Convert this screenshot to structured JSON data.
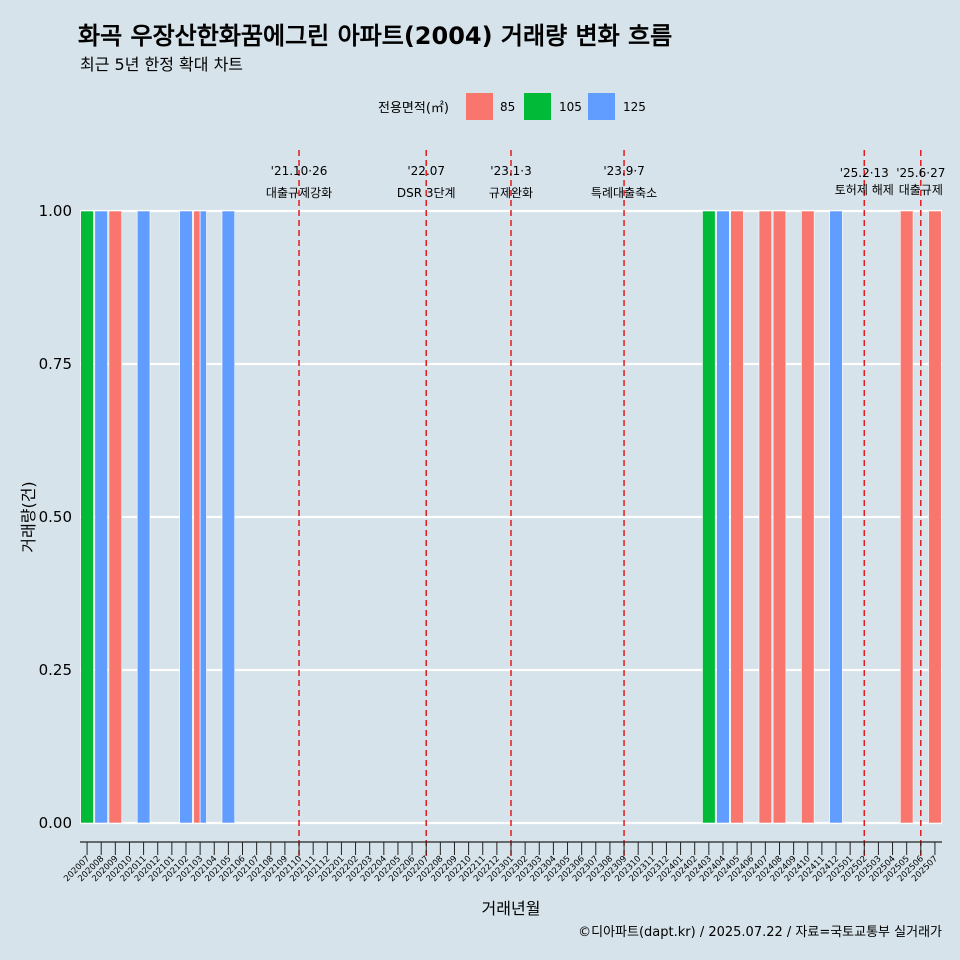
{
  "chart_data": {
    "type": "bar",
    "title": "화곡 우장산한화꿈에그린 아파트(2004) 거래량 변화 흐름",
    "subtitle": "최근 5년 한정 확대 차트",
    "xlabel": "거래년월",
    "ylabel": "거래량(건)",
    "ylim": [
      0,
      1
    ],
    "yticks": [
      "0.00",
      "0.25",
      "0.50",
      "0.75",
      "1.00"
    ],
    "legend_title": "전용면적(㎡)",
    "legend_position": "top",
    "categories": [
      "202007",
      "202008",
      "202009",
      "202010",
      "202011",
      "202012",
      "202101",
      "202102",
      "202103",
      "202104",
      "202105",
      "202106",
      "202107",
      "202108",
      "202109",
      "202110",
      "202111",
      "202112",
      "202201",
      "202202",
      "202203",
      "202204",
      "202205",
      "202206",
      "202207",
      "202208",
      "202209",
      "202210",
      "202211",
      "202212",
      "202301",
      "202302",
      "202303",
      "202304",
      "202305",
      "202306",
      "202307",
      "202308",
      "202309",
      "202310",
      "202311",
      "202312",
      "202401",
      "202402",
      "202403",
      "202404",
      "202405",
      "202406",
      "202407",
      "202408",
      "202409",
      "202410",
      "202411",
      "202412",
      "202501",
      "202502",
      "202503",
      "202504",
      "202505",
      "202506",
      "202507"
    ],
    "series": [
      {
        "name": "85",
        "color": "#f8766d",
        "values": [
          0,
          0,
          1,
          0,
          0,
          0,
          0,
          0,
          1,
          0,
          0,
          0,
          0,
          0,
          0,
          0,
          0,
          0,
          0,
          0,
          0,
          0,
          0,
          0,
          0,
          0,
          0,
          0,
          0,
          0,
          0,
          0,
          0,
          0,
          0,
          0,
          0,
          0,
          0,
          0,
          0,
          0,
          0,
          0,
          0,
          0,
          1,
          0,
          1,
          1,
          0,
          1,
          0,
          0,
          0,
          0,
          0,
          0,
          1,
          0,
          1
        ]
      },
      {
        "name": "105",
        "color": "#00ba38",
        "values": [
          1,
          0,
          0,
          0,
          0,
          0,
          0,
          0,
          0,
          0,
          0,
          0,
          0,
          0,
          0,
          0,
          0,
          0,
          0,
          0,
          0,
          0,
          0,
          0,
          0,
          0,
          0,
          0,
          0,
          0,
          0,
          0,
          0,
          0,
          0,
          0,
          0,
          0,
          0,
          0,
          0,
          0,
          0,
          0,
          1,
          0,
          0,
          0,
          0,
          0,
          0,
          0,
          0,
          0,
          0,
          0,
          0,
          0,
          0,
          0,
          0
        ]
      },
      {
        "name": "125",
        "color": "#619cff",
        "values": [
          0,
          1,
          0,
          0,
          1,
          0,
          0,
          1,
          1,
          0,
          1,
          0,
          0,
          0,
          0,
          0,
          0,
          0,
          0,
          0,
          0,
          0,
          0,
          0,
          0,
          0,
          0,
          0,
          0,
          0,
          0,
          0,
          0,
          0,
          0,
          0,
          0,
          0,
          0,
          0,
          0,
          0,
          0,
          0,
          0,
          1,
          0,
          0,
          0,
          0,
          0,
          0,
          0,
          1,
          0,
          0,
          0,
          0,
          0,
          0,
          0
        ]
      }
    ],
    "annotations": [
      {
        "x": "202110",
        "date": "'21.10·26",
        "label": "대출규제강화"
      },
      {
        "x": "202207",
        "date": "'22.07",
        "label": "DSR 3단계"
      },
      {
        "x": "202301",
        "date": "'23.1·3",
        "label": "규제완화"
      },
      {
        "x": "202309",
        "date": "'23.9·7",
        "label": "특례대출축소"
      },
      {
        "x": "202502",
        "date": "'25.2·13",
        "label": "토허제 해제"
      },
      {
        "x": "202506",
        "date": "'25.6·27",
        "label": "대출규제"
      }
    ],
    "caption": "©디아파트(dapt.kr) / 2025.07.22 / 자료=국토교통부 실거래가"
  }
}
